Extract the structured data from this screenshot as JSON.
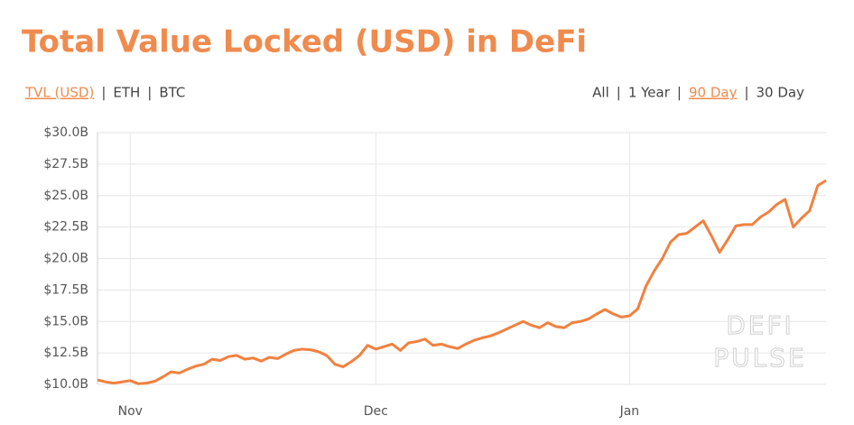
{
  "chart_data": {
    "type": "line",
    "title": "Total Value Locked (USD) in DeFi",
    "tabs": {
      "left": [
        "TVL (USD)",
        "ETH",
        "BTC"
      ],
      "left_selected": 0,
      "right": [
        "All",
        "1 Year",
        "90 Day",
        "30 Day"
      ],
      "right_selected": 2
    },
    "watermark": [
      "DEFI",
      "PULSE"
    ],
    "categories": [
      null,
      null,
      null,
      null,
      "Nov",
      null,
      null,
      null,
      null,
      null,
      null,
      null,
      null,
      null,
      null,
      null,
      null,
      null,
      null,
      null,
      null,
      null,
      null,
      null,
      null,
      null,
      null,
      null,
      null,
      null,
      null,
      null,
      null,
      null,
      "Dec",
      null,
      null,
      null,
      null,
      null,
      null,
      null,
      null,
      null,
      null,
      null,
      null,
      null,
      null,
      null,
      null,
      null,
      null,
      null,
      null,
      null,
      null,
      null,
      null,
      null,
      null,
      null,
      null,
      null,
      null,
      "Jan",
      null,
      null,
      null,
      null,
      null,
      null,
      null,
      null,
      null,
      null,
      null,
      null,
      null,
      null,
      null,
      null,
      null,
      null,
      null,
      null,
      null,
      null,
      null,
      null
    ],
    "series": [
      {
        "name": "TVL (USD)",
        "color": "#f0813f",
        "values": [
          10.35,
          10.2,
          10.1,
          10.2,
          10.3,
          10.05,
          10.1,
          10.25,
          10.6,
          11.0,
          10.9,
          11.2,
          11.45,
          11.6,
          12.0,
          11.9,
          12.2,
          12.3,
          12.0,
          12.1,
          11.85,
          12.15,
          12.05,
          12.4,
          12.7,
          12.8,
          12.75,
          12.6,
          12.3,
          11.6,
          11.4,
          11.8,
          12.3,
          13.1,
          12.8,
          13.0,
          13.2,
          12.7,
          13.3,
          13.4,
          13.6,
          13.1,
          13.2,
          13.0,
          12.85,
          13.2,
          13.5,
          13.7,
          13.85,
          14.1,
          14.4,
          14.7,
          15.0,
          14.7,
          14.5,
          14.9,
          14.6,
          14.5,
          14.9,
          15.0,
          15.2,
          15.6,
          15.95,
          15.6,
          15.35,
          15.45,
          16.0,
          17.8,
          19.0,
          20.0,
          21.3,
          21.9,
          22.0,
          22.5,
          23.0,
          21.8,
          20.5,
          21.5,
          22.6,
          22.7,
          22.7,
          23.3,
          23.7,
          24.3,
          24.7,
          22.5,
          23.2,
          23.8,
          25.8,
          26.2
        ]
      }
    ],
    "ylim": [
      10,
      30
    ],
    "yticks": [
      {
        "value": 10,
        "label": "$10.0B"
      },
      {
        "value": 12.5,
        "label": "$12.5B"
      },
      {
        "value": 15,
        "label": "$15.0B"
      },
      {
        "value": 17.5,
        "label": "$17.5B"
      },
      {
        "value": 20,
        "label": "$20.0B"
      },
      {
        "value": 22.5,
        "label": "$22.5B"
      },
      {
        "value": 25,
        "label": "$25.0B"
      },
      {
        "value": 27.5,
        "label": "$27.5B"
      },
      {
        "value": 30,
        "label": "$30.0B"
      }
    ],
    "grid": true
  }
}
